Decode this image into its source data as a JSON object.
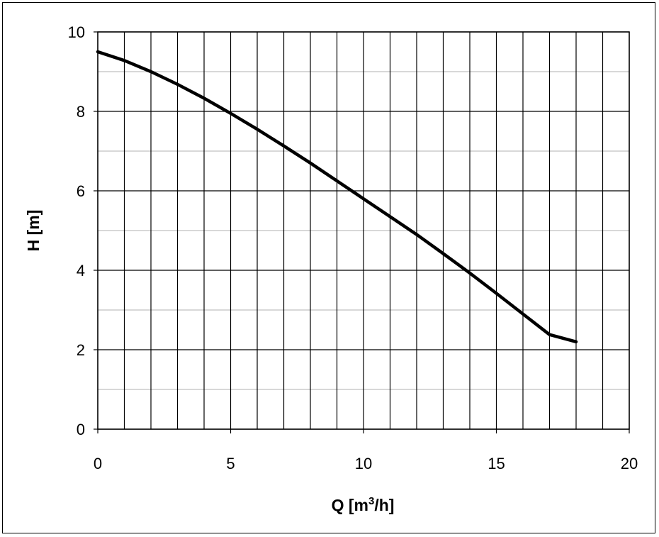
{
  "chart_data": {
    "type": "line",
    "title": "",
    "xlabel": "Q [m",
    "xlabel_sup": "3",
    "xlabel_suffix": "/h]",
    "ylabel": "H [m]",
    "xlim": [
      0,
      20
    ],
    "ylim": [
      0,
      10
    ],
    "x_ticks": [
      0,
      5,
      10,
      15,
      20
    ],
    "y_ticks": [
      0,
      2,
      4,
      6,
      8,
      10
    ],
    "x_minor_step": 1,
    "y_minor_step": 1,
    "grid": true,
    "legend": "none",
    "line_color": "#000000",
    "grid_major_color": "#000000",
    "grid_minor_color": "#b0b0b0",
    "series": [
      {
        "x": [
          0,
          1,
          2,
          3,
          4,
          5,
          6,
          7,
          8,
          9,
          10,
          11,
          12,
          13,
          14,
          15,
          16,
          17,
          18
        ],
        "y": [
          9.5,
          9.28,
          9.0,
          8.68,
          8.33,
          7.95,
          7.55,
          7.13,
          6.7,
          6.25,
          5.8,
          5.35,
          4.9,
          4.42,
          3.93,
          3.42,
          2.9,
          2.38,
          2.2
        ]
      }
    ]
  }
}
